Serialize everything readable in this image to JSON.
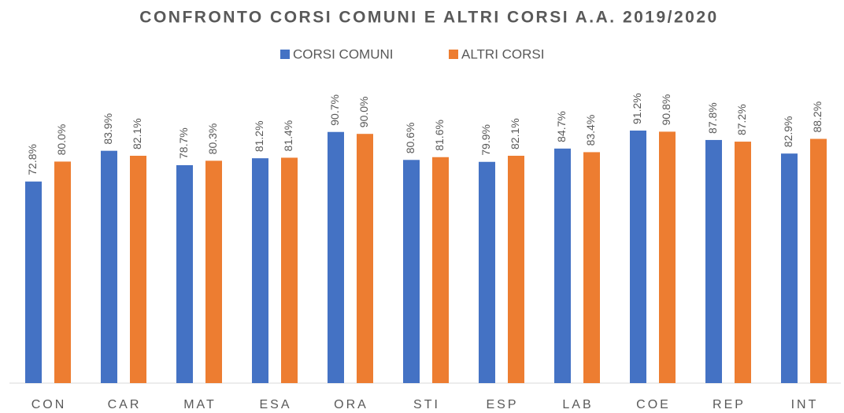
{
  "chart_data": {
    "type": "bar",
    "title": "CONFRONTO CORSI COMUNI E ALTRI CORSI A.A. 2019/2020",
    "categories": [
      "CON",
      "CAR",
      "MAT",
      "ESA",
      "ORA",
      "STI",
      "ESP",
      "LAB",
      "COE",
      "REP",
      "INT"
    ],
    "series": [
      {
        "name": "CORSI COMUNI",
        "color": "#4472c4",
        "values": [
          72.8,
          83.9,
          78.7,
          81.2,
          90.7,
          80.6,
          79.9,
          84.7,
          91.2,
          87.8,
          82.9
        ],
        "value_labels": [
          "72.8%",
          "83.9%",
          "78.7%",
          "81.2%",
          "90.7%",
          "80.6%",
          "79.9%",
          "84.7%",
          "91.2%",
          "87.8%",
          "82.9%"
        ]
      },
      {
        "name": "ALTRI CORSI",
        "color": "#ed7d31",
        "values": [
          80.0,
          82.1,
          80.3,
          81.4,
          90.0,
          81.6,
          82.1,
          83.4,
          90.8,
          87.2,
          88.2
        ],
        "value_labels": [
          "80.0%",
          "82.1%",
          "80.3%",
          "81.4%",
          "90.0%",
          "81.6%",
          "82.1%",
          "83.4%",
          "90.8%",
          "87.2%",
          "88.2%"
        ]
      }
    ],
    "ylim": [
      0,
      100
    ]
  }
}
